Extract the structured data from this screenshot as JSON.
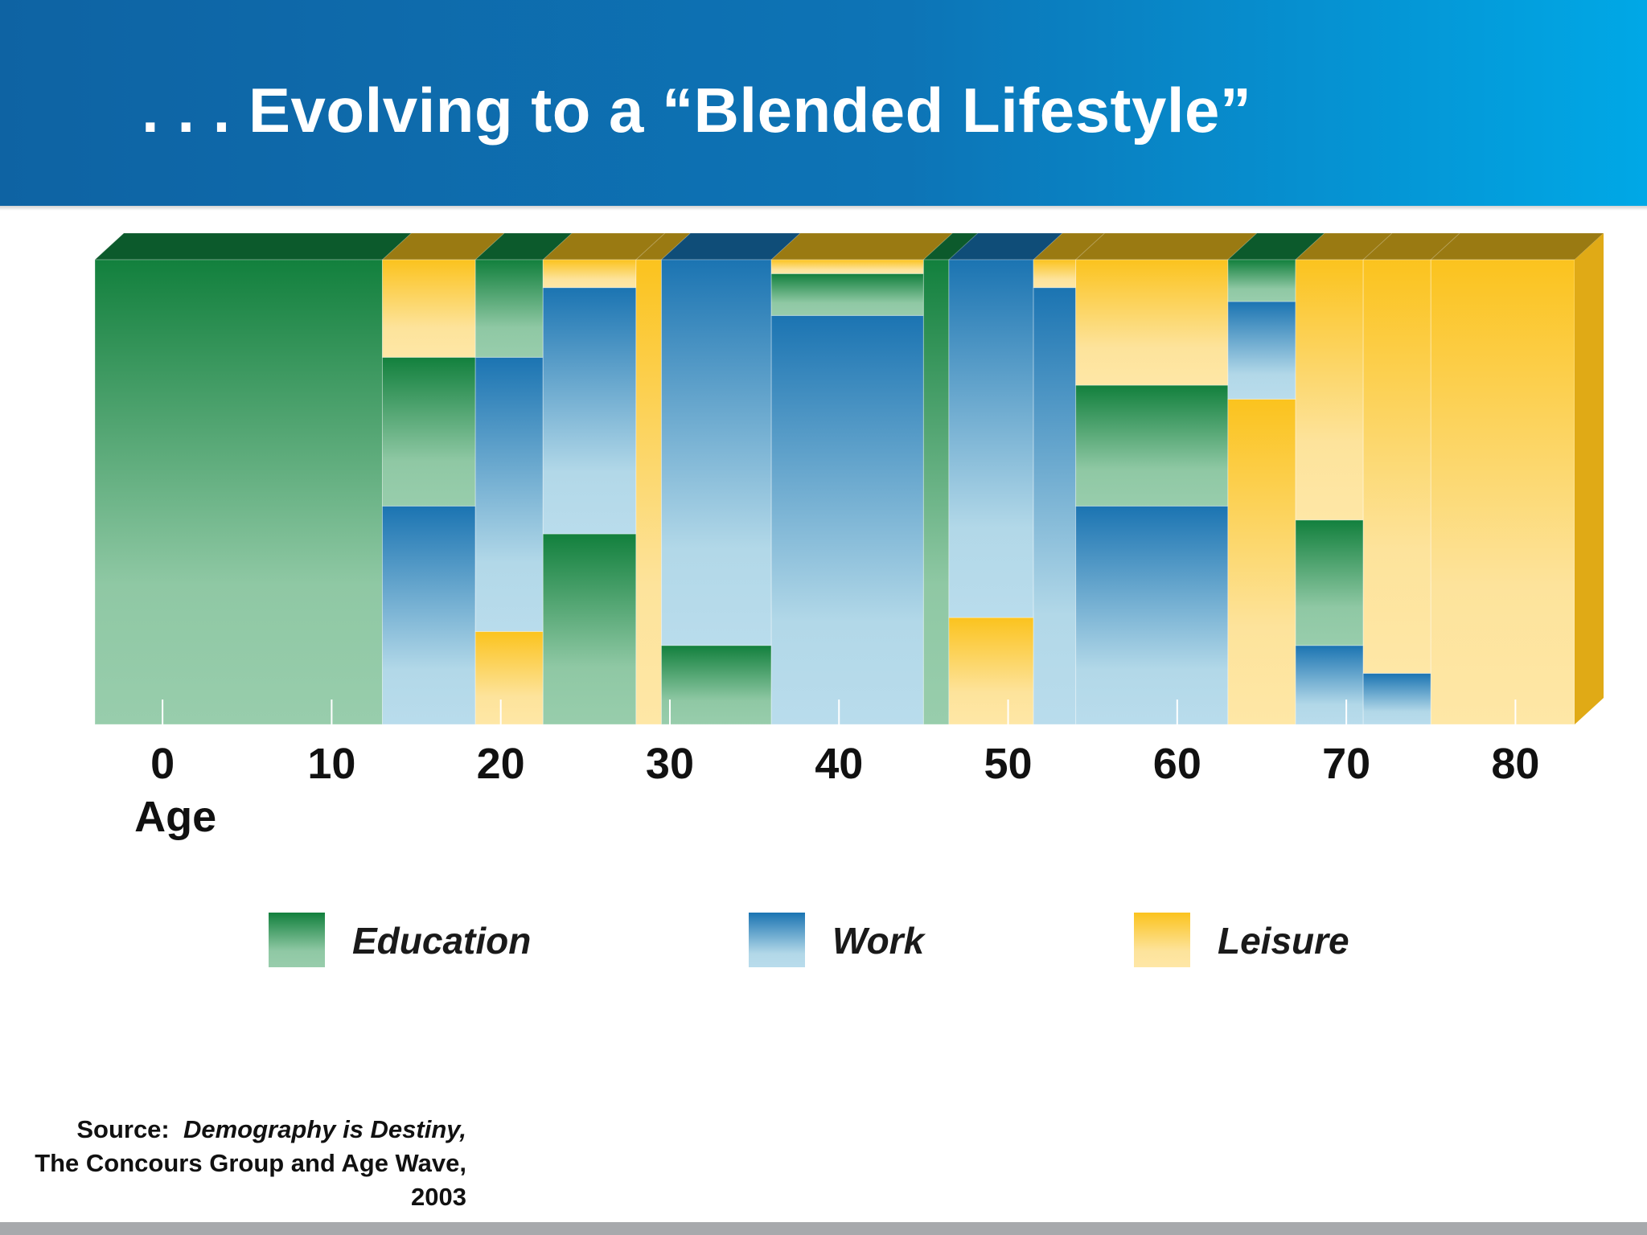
{
  "slide": {
    "title": ". . . Evolving to a “Blended Lifestyle”"
  },
  "source": {
    "prefix": "Source:",
    "publication": "Demography is Destiny,",
    "line2": "The Concours Group and Age Wave, 2003"
  },
  "colors": {
    "banner": "#0d6fb0",
    "Education": "#1a8a45",
    "Work": "#1f7bb8",
    "Leisure": "#fcc62b"
  },
  "chart_data": {
    "type": "bar",
    "subtype": "stacked-percent-3d",
    "xlabel": "Age",
    "ylabel": "",
    "x_ticks": [
      0,
      10,
      20,
      30,
      40,
      50,
      60,
      70,
      80
    ],
    "xlim": [
      -4,
      83.5
    ],
    "ylim": [
      0,
      100
    ],
    "legend": [
      "Education",
      "Work",
      "Leisure"
    ],
    "legend_position": "bottom",
    "note": "Each column spans an age range; segments listed bottom to top with share of time in percent.",
    "columns": [
      {
        "age_start": -4,
        "age_end": 13,
        "segments": [
          {
            "category": "Education",
            "value": 100
          }
        ]
      },
      {
        "age_start": 13,
        "age_end": 18.5,
        "segments": [
          {
            "category": "Work",
            "value": 47
          },
          {
            "category": "Education",
            "value": 32
          },
          {
            "category": "Leisure",
            "value": 21
          }
        ]
      },
      {
        "age_start": 18.5,
        "age_end": 22.5,
        "segments": [
          {
            "category": "Leisure",
            "value": 20
          },
          {
            "category": "Work",
            "value": 59
          },
          {
            "category": "Education",
            "value": 21
          }
        ]
      },
      {
        "age_start": 22.5,
        "age_end": 28,
        "segments": [
          {
            "category": "Education",
            "value": 41
          },
          {
            "category": "Work",
            "value": 53
          },
          {
            "category": "Leisure",
            "value": 6
          }
        ]
      },
      {
        "age_start": 28,
        "age_end": 29.5,
        "segments": [
          {
            "category": "Leisure",
            "value": 100
          }
        ]
      },
      {
        "age_start": 29.5,
        "age_end": 36,
        "segments": [
          {
            "category": "Education",
            "value": 17
          },
          {
            "category": "Work",
            "value": 83
          }
        ]
      },
      {
        "age_start": 36,
        "age_end": 45,
        "segments": [
          {
            "category": "Work",
            "value": 88
          },
          {
            "category": "Education",
            "value": 9
          },
          {
            "category": "Leisure",
            "value": 3
          }
        ]
      },
      {
        "age_start": 45,
        "age_end": 46.5,
        "segments": [
          {
            "category": "Education",
            "value": 100
          }
        ]
      },
      {
        "age_start": 46.5,
        "age_end": 51.5,
        "segments": [
          {
            "category": "Leisure",
            "value": 23
          },
          {
            "category": "Work",
            "value": 77
          }
        ]
      },
      {
        "age_start": 51.5,
        "age_end": 54,
        "segments": [
          {
            "category": "Work",
            "value": 94
          },
          {
            "category": "Leisure",
            "value": 6
          }
        ]
      },
      {
        "age_start": 54,
        "age_end": 63,
        "segments": [
          {
            "category": "Work",
            "value": 47
          },
          {
            "category": "Education",
            "value": 26
          },
          {
            "category": "Leisure",
            "value": 27
          }
        ]
      },
      {
        "age_start": 63,
        "age_end": 67,
        "segments": [
          {
            "category": "Leisure",
            "value": 70
          },
          {
            "category": "Work",
            "value": 21
          },
          {
            "category": "Education",
            "value": 9
          }
        ]
      },
      {
        "age_start": 67,
        "age_end": 71,
        "segments": [
          {
            "category": "Work",
            "value": 17
          },
          {
            "category": "Education",
            "value": 27
          },
          {
            "category": "Leisure",
            "value": 56
          }
        ]
      },
      {
        "age_start": 71,
        "age_end": 75,
        "segments": [
          {
            "category": "Work",
            "value": 11
          },
          {
            "category": "Leisure",
            "value": 89
          }
        ]
      },
      {
        "age_start": 75,
        "age_end": 83.5,
        "segments": [
          {
            "category": "Leisure",
            "value": 100
          }
        ]
      }
    ]
  }
}
